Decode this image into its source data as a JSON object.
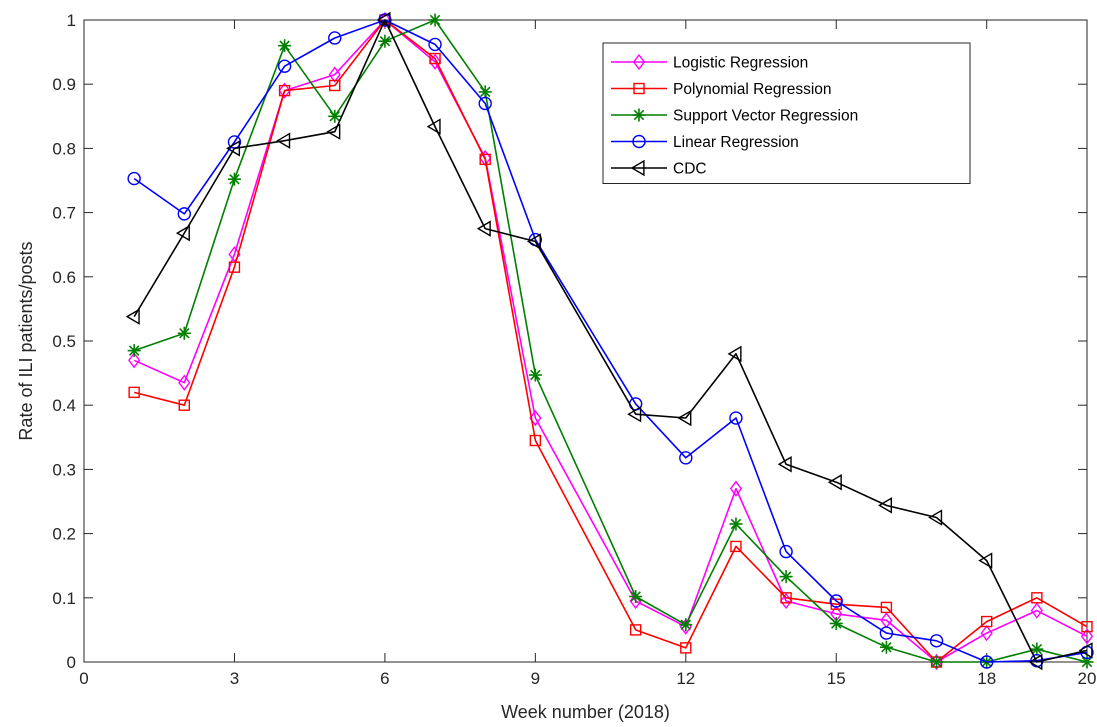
{
  "chart_data": {
    "type": "line",
    "xlabel": "Week number (2018)",
    "ylabel": "Rate of ILI patients/posts",
    "xlim": [
      0,
      20
    ],
    "ylim": [
      0,
      1
    ],
    "xticks": [
      0,
      3,
      6,
      9,
      12,
      15,
      18,
      20
    ],
    "yticks": [
      0,
      0.1,
      0.2,
      0.3,
      0.4,
      0.5,
      0.6,
      0.7,
      0.8,
      0.9,
      1
    ],
    "xtick_labels": [
      "0",
      "3",
      "6",
      "9",
      "12",
      "15",
      "18",
      "20"
    ],
    "ytick_labels": [
      "0",
      "0.1",
      "0.2",
      "0.3",
      "0.4",
      "0.5",
      "0.6",
      "0.7",
      "0.8",
      "0.9",
      "1"
    ],
    "grid": false,
    "legend_position": "top-right",
    "series": [
      {
        "name": "Logistic Regression",
        "color": "#ff00ff",
        "marker": "diamond",
        "x": [
          1,
          2,
          3,
          4,
          5,
          6,
          7,
          8,
          9,
          11,
          12,
          13,
          14,
          15,
          16,
          17,
          18,
          19,
          20
        ],
        "y": [
          0.47,
          0.435,
          0.635,
          0.89,
          0.915,
          1.0,
          0.935,
          0.785,
          0.38,
          0.095,
          0.055,
          0.27,
          0.095,
          0.075,
          0.065,
          0.0,
          0.045,
          0.08,
          0.04
        ]
      },
      {
        "name": "Polynomial Regression",
        "color": "#ff0000",
        "marker": "square",
        "x": [
          1,
          2,
          3,
          4,
          5,
          6,
          7,
          8,
          9,
          11,
          12,
          13,
          14,
          15,
          16,
          17,
          18,
          19,
          20
        ],
        "y": [
          0.42,
          0.4,
          0.615,
          0.89,
          0.898,
          1.0,
          0.94,
          0.783,
          0.345,
          0.05,
          0.022,
          0.18,
          0.1,
          0.09,
          0.085,
          0.0,
          0.063,
          0.1,
          0.055
        ]
      },
      {
        "name": "Support Vector Regression",
        "color": "#007f00",
        "marker": "star",
        "x": [
          1,
          2,
          3,
          4,
          5,
          6,
          7,
          8,
          9,
          11,
          12,
          13,
          14,
          15,
          16,
          17,
          18,
          19,
          20
        ],
        "y": [
          0.485,
          0.512,
          0.752,
          0.96,
          0.85,
          0.967,
          1.0,
          0.888,
          0.447,
          0.102,
          0.058,
          0.215,
          0.133,
          0.06,
          0.023,
          0.0,
          0.0,
          0.02,
          0.0
        ]
      },
      {
        "name": "Linear Regression",
        "color": "#0000ff",
        "marker": "circle",
        "x": [
          1,
          2,
          3,
          4,
          5,
          6,
          7,
          8,
          9,
          11,
          12,
          13,
          14,
          15,
          16,
          17,
          18,
          19,
          20
        ],
        "y": [
          0.753,
          0.698,
          0.81,
          0.928,
          0.972,
          1.0,
          0.962,
          0.87,
          0.658,
          0.402,
          0.318,
          0.38,
          0.172,
          0.095,
          0.045,
          0.033,
          0.0,
          0.002,
          0.015
        ]
      },
      {
        "name": "CDC",
        "color": "#000000",
        "marker": "triangle-left",
        "x": [
          1,
          2,
          3,
          4,
          5,
          6,
          7,
          8,
          9,
          11,
          12,
          13,
          14,
          15,
          16,
          17,
          18,
          19,
          20
        ],
        "y": [
          0.538,
          0.668,
          0.8,
          0.812,
          0.826,
          1.0,
          0.834,
          0.675,
          0.655,
          0.386,
          0.38,
          0.48,
          0.308,
          0.28,
          0.244,
          0.225,
          0.158,
          0.0,
          0.018
        ]
      }
    ]
  }
}
